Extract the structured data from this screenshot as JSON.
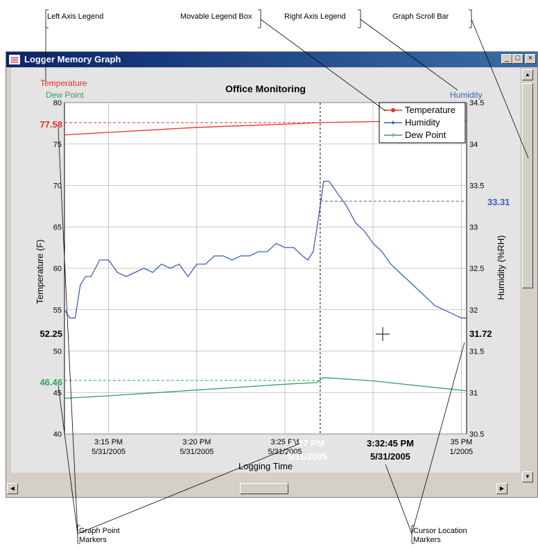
{
  "callouts": {
    "left_axis_legend": "Left Axis Legend",
    "movable_legend_box": "Movable Legend Box",
    "right_axis_legend": "Right Axis Legend",
    "graph_scroll_bar": "Graph Scroll Bar",
    "graph_point_markers_1": "Graph Point",
    "graph_point_markers_2": "Markers",
    "cursor_location_markers_1": "Cursor Location",
    "cursor_location_markers_2": "Markers"
  },
  "window": {
    "title": "Logger Memory Graph",
    "minimize_label": "_",
    "maximize_label": "□",
    "close_label": "×"
  },
  "colors": {
    "temperature": "#e8302a",
    "humidity": "#3a5fb8",
    "dew_point": "#2ea35a"
  },
  "markers": {
    "temperature_value": "77.58",
    "dew_point_value": "46.46",
    "humidity_value": "33.31",
    "cursor_left_value": "52.25",
    "cursor_right_value": "31.72",
    "cursor_time": "3:32:45 PM",
    "cursor_date": "5/31/2005",
    "point_time": "3:27 PM",
    "point_date": "5/31/2005"
  },
  "chart_data": {
    "type": "line",
    "title": "Office Monitoring",
    "xlabel": "Logging Time",
    "ylabel_left": "Temperature (F)",
    "ylabel_right": "Humidity (%RH)",
    "left_axis_legend": [
      "Temperature",
      "Dew Point"
    ],
    "right_axis_legend": [
      "Humidity"
    ],
    "ylim_left": [
      40,
      80
    ],
    "ylim_right": [
      30.5,
      34.5
    ],
    "left_ticks": [
      40,
      45,
      50,
      55,
      60,
      65,
      70,
      75,
      80
    ],
    "right_ticks": [
      30.5,
      31,
      31.5,
      32,
      32.5,
      33,
      33.5,
      34,
      34.5
    ],
    "x_minutes_range": [
      12.5,
      35.3
    ],
    "x_ticks": [
      {
        "minute": 15,
        "time": "3:15 PM",
        "date": "5/31/2005"
      },
      {
        "minute": 20,
        "time": "3:20 PM",
        "date": "5/31/2005"
      },
      {
        "minute": 25,
        "time": "3:25 PM",
        "date": "5/31/2005"
      },
      {
        "minute": 30,
        "time": "30 PM",
        "date": "/1/2005"
      },
      {
        "minute": 35,
        "time": "35 PM",
        "date": "1/2005"
      }
    ],
    "legend": [
      "Temperature",
      "Humidity",
      "Dew Point"
    ],
    "legend_placement": "top-right",
    "grid": true,
    "series": [
      {
        "name": "Temperature",
        "axis": "left",
        "x": [
          12.5,
          15,
          20,
          25,
          27,
          30,
          35.3
        ],
        "y": [
          76.1,
          76.4,
          77.0,
          77.4,
          77.58,
          77.7,
          77.8
        ]
      },
      {
        "name": "Humidity",
        "axis": "right",
        "x": [
          12.5,
          12.8,
          13.1,
          13.4,
          13.7,
          14.0,
          14.5,
          15.0,
          15.5,
          16.0,
          16.5,
          17.0,
          17.5,
          18.0,
          18.5,
          19.0,
          19.5,
          20.0,
          20.5,
          21.0,
          21.5,
          22.0,
          22.5,
          23.0,
          23.5,
          24.0,
          24.5,
          25.0,
          25.5,
          26.0,
          26.3,
          26.6,
          26.9,
          27.2,
          27.5,
          28.0,
          28.5,
          29.0,
          29.5,
          30.0,
          30.5,
          31.0,
          31.5,
          32.0,
          32.5,
          33.0,
          33.5,
          34.0,
          34.5,
          35.0,
          35.3
        ],
        "y": [
          32.0,
          31.9,
          31.9,
          32.3,
          32.4,
          32.4,
          32.6,
          32.6,
          32.45,
          32.4,
          32.45,
          32.5,
          32.45,
          32.55,
          32.5,
          32.55,
          32.4,
          32.55,
          32.55,
          32.65,
          32.65,
          32.6,
          32.65,
          32.65,
          32.7,
          32.7,
          32.8,
          32.75,
          32.75,
          32.65,
          32.6,
          32.7,
          33.1,
          33.55,
          33.55,
          33.4,
          33.25,
          33.05,
          32.95,
          32.8,
          32.7,
          32.55,
          32.45,
          32.35,
          32.25,
          32.15,
          32.05,
          32.0,
          31.95,
          31.9,
          31.9
        ]
      },
      {
        "name": "Dew Point",
        "axis": "left",
        "x": [
          12.5,
          15,
          20,
          25,
          26.8,
          27.2,
          30,
          35.3
        ],
        "y": [
          44.3,
          44.6,
          45.3,
          46.0,
          46.2,
          46.8,
          46.4,
          45.2
        ]
      }
    ],
    "vertical_marker_minute": 27.0
  }
}
